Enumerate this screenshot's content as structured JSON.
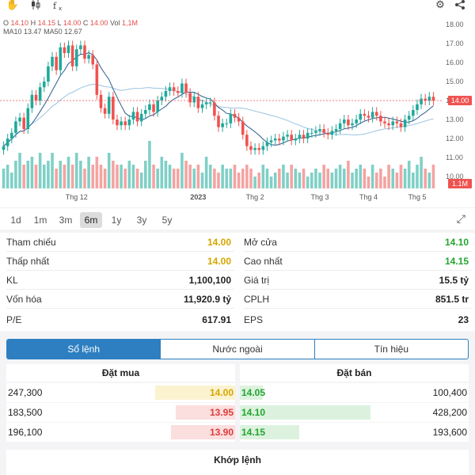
{
  "toolbar": {
    "hand_icon": "hand-icon",
    "candle_icon": "candle-icon",
    "indicator_icon": "indicator-icon",
    "gear_icon": "gear-icon",
    "share_icon": "share-icon"
  },
  "ohlc": {
    "o_label": "O",
    "o": "14.10",
    "h_label": "H",
    "h": "14.15",
    "l_label": "L",
    "l": "14.00",
    "c_label": "C",
    "c": "14.00",
    "vol_label": "Vol",
    "vol": "1,1M"
  },
  "ma": {
    "ma10_label": "MA10",
    "ma10": "13.47",
    "ma50_label": "MA50",
    "ma50": "12.67"
  },
  "colors": {
    "up": "#1fa99a",
    "down": "#ef5350",
    "ma10": "#2a5a8a",
    "ma50": "#9ac3e0",
    "accent": "#2d7fc1"
  },
  "chart_data": {
    "type": "candlestick",
    "yaxis_ticks": [
      "18.00",
      "17.00",
      "16.00",
      "15.00",
      "14.00",
      "13.00",
      "12.00",
      "11.00",
      "10.00"
    ],
    "ylim": [
      10,
      18
    ],
    "x_labels": [
      "Thg 12",
      "2023",
      "Thg 2",
      "Thg 3",
      "Thg 4",
      "Thg 5"
    ],
    "last_price": "14.00",
    "last_volume": "1.1M",
    "closes": [
      11.6,
      12.0,
      12.3,
      12.9,
      13.1,
      12.5,
      13.6,
      14.3,
      14.0,
      14.7,
      15.0,
      15.8,
      16.3,
      15.6,
      16.8,
      16.5,
      16.9,
      15.8,
      16.7,
      16.9,
      16.2,
      16.4,
      15.9,
      14.3,
      13.6,
      13.3,
      14.2,
      13.0,
      12.7,
      12.9,
      12.7,
      13.0,
      13.4,
      12.9,
      13.3,
      13.5,
      13.8,
      13.4,
      14.0,
      14.2,
      14.5,
      14.7,
      14.5,
      14.4,
      14.9,
      14.4,
      13.9,
      14.2,
      13.6,
      13.8,
      13.9,
      13.9,
      13.2,
      12.6,
      12.8,
      12.8,
      13.3,
      13.1,
      12.9,
      12.2,
      11.6,
      11.4,
      11.5,
      11.4,
      11.6,
      11.8,
      11.9,
      12.0,
      11.9,
      12.1,
      12.2,
      11.9,
      12.0,
      12.2,
      12.0,
      12.3,
      12.3,
      12.4,
      12.5,
      12.3,
      12.2,
      12.4,
      12.5,
      12.8,
      13.0,
      12.7,
      12.8,
      13.0,
      13.3,
      13.2,
      13.1,
      13.4,
      13.2,
      12.9,
      12.8,
      12.7,
      12.9,
      12.8,
      12.6,
      13.0,
      13.2,
      13.5,
      13.8,
      14.1,
      14.0,
      14.2,
      14.0
    ],
    "volumes": [
      0.5,
      0.6,
      0.4,
      0.7,
      0.9,
      0.6,
      0.7,
      0.8,
      0.6,
      0.9,
      0.6,
      0.7,
      0.9,
      0.5,
      0.7,
      0.6,
      0.8,
      0.6,
      0.9,
      0.7,
      0.5,
      0.8,
      0.6,
      0.8,
      0.6,
      0.5,
      0.9,
      0.7,
      0.6,
      0.6,
      0.5,
      0.7,
      0.6,
      0.5,
      0.4,
      0.7,
      1.2,
      0.6,
      0.5,
      0.8,
      0.7,
      0.6,
      0.5,
      0.5,
      0.9,
      0.7,
      0.6,
      0.5,
      0.6,
      0.4,
      0.8,
      0.6,
      0.5,
      0.4,
      0.6,
      0.5,
      0.5,
      0.6,
      0.4,
      0.5,
      0.6,
      0.5,
      0.3,
      0.4,
      0.6,
      0.5,
      0.3,
      0.4,
      0.5,
      0.6,
      0.4,
      0.6,
      0.5,
      0.4,
      0.5,
      0.3,
      0.4,
      0.5,
      0.4,
      0.6,
      0.5,
      0.4,
      0.5,
      0.6,
      0.5,
      0.7,
      0.4,
      0.5,
      0.6,
      0.5,
      0.3,
      0.6,
      0.4,
      0.5,
      0.3,
      0.6,
      0.5,
      0.4,
      0.6,
      0.5,
      0.7,
      0.4,
      0.6,
      0.8,
      0.5,
      0.4,
      0.6
    ]
  },
  "timeframes": [
    "1d",
    "1m",
    "3m",
    "6m",
    "1y",
    "3y",
    "5y"
  ],
  "active_timeframe": "6m",
  "stats": {
    "tham_chieu_label": "Tham chiếu",
    "tham_chieu": "14.00",
    "mo_cua_label": "Mở cửa",
    "mo_cua": "14.10",
    "thap_nhat_label": "Thấp nhất",
    "thap_nhat": "14.00",
    "cao_nhat_label": "Cao nhất",
    "cao_nhat": "14.15",
    "kl_label": "KL",
    "kl": "1,100,100",
    "gia_tri_label": "Giá trị",
    "gia_tri": "15.5 tỷ",
    "von_hoa_label": "Vốn hóa",
    "von_hoa": "11,920.9 tỷ",
    "cplh_label": "CPLH",
    "cplh": "851.5 tr",
    "pe_label": "P/E",
    "pe": "617.91",
    "eps_label": "EPS",
    "eps": "23"
  },
  "tabs": [
    "Sổ lệnh",
    "Nước ngoài",
    "Tín hiệu"
  ],
  "book": {
    "buy_title": "Đặt mua",
    "sell_title": "Đặt bán",
    "buy": [
      {
        "vol": "247,300",
        "price": "14.00",
        "fill": 0.35
      },
      {
        "vol": "183,500",
        "price": "13.95",
        "fill": 0.26
      },
      {
        "vol": "196,100",
        "price": "13.90",
        "fill": 0.28
      }
    ],
    "sell": [
      {
        "price": "14.05",
        "vol": "100,400",
        "fill": 0.1
      },
      {
        "price": "14.10",
        "vol": "428,200",
        "fill": 0.57
      },
      {
        "price": "14.15",
        "vol": "193,600",
        "fill": 0.26
      }
    ]
  },
  "match_title": "Khớp lệnh"
}
